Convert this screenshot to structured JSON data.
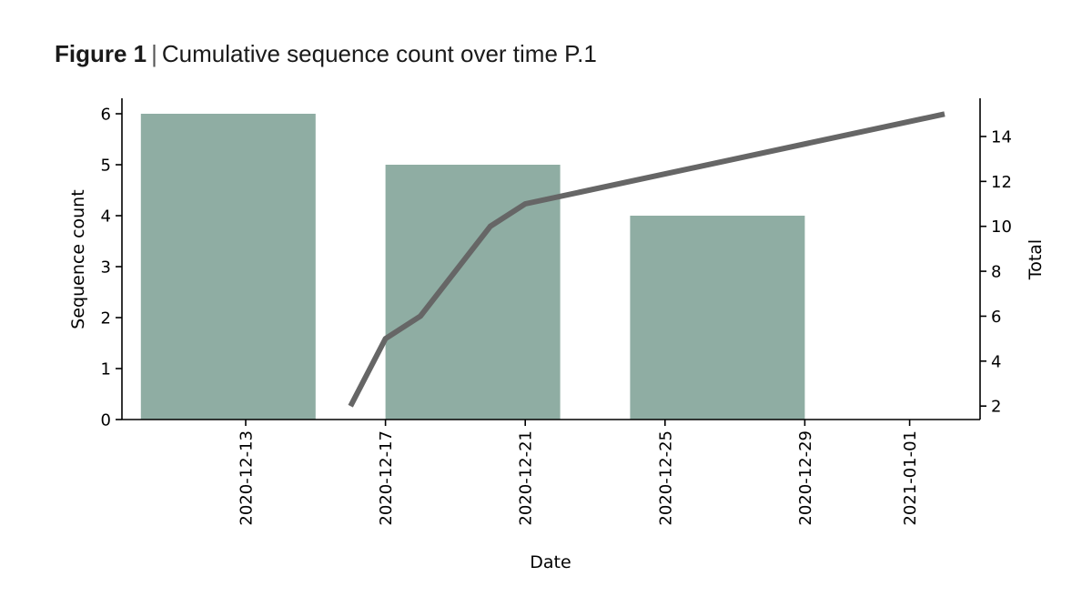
{
  "figure": {
    "label": "Figure 1",
    "separator": "|",
    "caption": "Cumulative sequence count over time P.1"
  },
  "chart_data": {
    "type": "bar",
    "xlabel": "Date",
    "ylabel_left": "Sequence count",
    "ylabel_right": "Total",
    "x_ticks": [
      "2020-12-13",
      "2020-12-17",
      "2020-12-21",
      "2020-12-25",
      "2020-12-29",
      "2021-01-01"
    ],
    "left_axis": {
      "range": [
        0,
        6
      ],
      "ticks": [
        0,
        1,
        2,
        3,
        4,
        5,
        6
      ]
    },
    "right_axis": {
      "range": [
        1.4,
        15.7
      ],
      "ticks": [
        2,
        4,
        6,
        8,
        10,
        12,
        14
      ]
    },
    "grid": false,
    "series": [
      {
        "type": "bar",
        "axis": "left",
        "color": "#8fada3",
        "points": [
          {
            "x_start": "2020-12-10",
            "x_end": "2020-12-15",
            "value": 6
          },
          {
            "x_start": "2020-12-17",
            "x_end": "2020-12-22",
            "value": 5
          },
          {
            "x_start": "2020-12-24",
            "x_end": "2020-12-29",
            "value": 4
          }
        ]
      },
      {
        "type": "line",
        "axis": "right",
        "color": "#666666",
        "points": [
          {
            "x": "2020-12-16",
            "y": 2
          },
          {
            "x": "2020-12-17",
            "y": 5
          },
          {
            "x": "2020-12-18",
            "y": 6
          },
          {
            "x": "2020-12-20",
            "y": 10
          },
          {
            "x": "2020-12-21",
            "y": 11
          },
          {
            "x": "2021-01-02",
            "y": 15
          }
        ]
      }
    ]
  }
}
